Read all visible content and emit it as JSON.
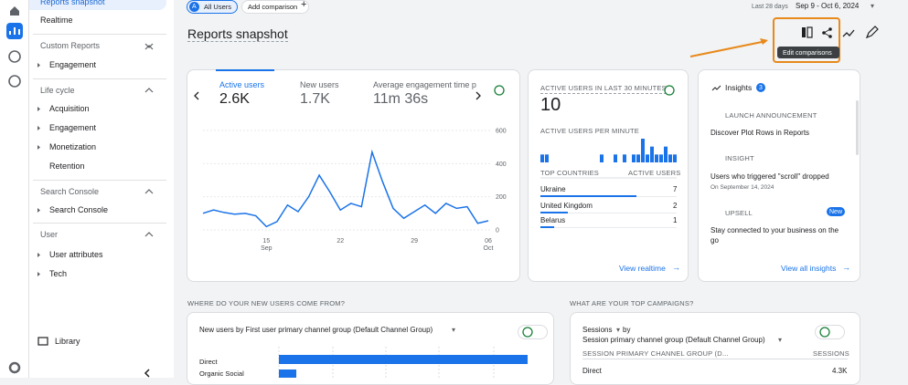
{
  "nav": {
    "top": [
      "Reports snapshot",
      "Realtime"
    ],
    "sections": [
      {
        "title": "Custom Reports",
        "items": [
          "Engagement"
        ]
      },
      {
        "title": "Life cycle",
        "items": [
          "Acquisition",
          "Engagement",
          "Monetization",
          "Retention"
        ]
      },
      {
        "title": "Search Console",
        "items": [
          "Search Console"
        ]
      },
      {
        "title": "User",
        "items": [
          "User attributes",
          "Tech"
        ]
      }
    ],
    "library": "Library"
  },
  "toolbar": {
    "segment_badge": "A",
    "segment": "All Users",
    "add_comparison": "Add comparison",
    "date_label": "Last 28 days",
    "date_range": "Sep 9 - Oct 6, 2024"
  },
  "page_title": "Reports snapshot",
  "tooltip": "Edit comparisons",
  "overview": {
    "tabs": [
      {
        "label": "Active users",
        "value": "2.6K"
      },
      {
        "label": "New users",
        "value": "1.7K"
      },
      {
        "label": "Average engagement time p",
        "value": "11m 36s"
      }
    ],
    "chart": {
      "type": "line",
      "color": "#1a73e8",
      "categories": [
        null,
        null,
        null,
        null,
        null,
        null,
        "15",
        null,
        null,
        null,
        null,
        null,
        null,
        "22",
        null,
        null,
        null,
        null,
        null,
        null,
        "29",
        null,
        null,
        null,
        null,
        null,
        null,
        "06"
      ],
      "months": [
        null,
        null,
        null,
        null,
        null,
        null,
        "Sep",
        null,
        null,
        null,
        null,
        null,
        null,
        null,
        null,
        null,
        null,
        null,
        null,
        null,
        null,
        null,
        null,
        null,
        null,
        null,
        null,
        "Oct"
      ],
      "values": [
        100,
        120,
        105,
        95,
        100,
        85,
        20,
        50,
        150,
        110,
        200,
        330,
        230,
        120,
        160,
        140,
        470,
        290,
        130,
        70,
        110,
        150,
        100,
        160,
        130,
        140,
        40,
        55
      ],
      "ylim": [
        0,
        600
      ],
      "yticks": [
        0,
        200,
        400,
        600
      ],
      "grid": true
    }
  },
  "realtime": {
    "title": "ACTIVE USERS IN LAST 30 MINUTES",
    "value": 10,
    "per_minute_label": "ACTIVE USERS PER MINUTE",
    "per_minute": [
      1,
      1,
      0,
      0,
      0,
      0,
      0,
      0,
      0,
      0,
      0,
      0,
      0,
      1,
      0,
      0,
      1,
      0,
      1,
      0,
      1,
      1,
      3,
      1,
      2,
      1,
      1,
      2,
      1,
      1
    ],
    "countries_header": "TOP COUNTRIES",
    "users_header": "ACTIVE USERS",
    "countries": [
      {
        "name": "Ukraine",
        "value": 7
      },
      {
        "name": "United Kingdom",
        "value": 2
      },
      {
        "name": "Belarus",
        "value": 1
      }
    ],
    "link": "View realtime"
  },
  "insights": {
    "title": "Insights",
    "count": 3,
    "items": [
      {
        "kind": "LAUNCH ANNOUNCEMENT",
        "text": "Discover Plot Rows in Reports"
      },
      {
        "kind": "INSIGHT",
        "text": "Users who triggered \"scroll\" dropped",
        "date": "On September 14, 2024"
      },
      {
        "kind": "UPSELL",
        "badge": "New",
        "text": "Stay connected to your business on the go"
      }
    ],
    "link": "View all insights"
  },
  "new_users": {
    "heading": "WHERE DO YOUR NEW USERS COME FROM?",
    "selector": "New users by First user primary channel group (Default Channel Group)",
    "categories": [
      "Direct",
      "Organic Social"
    ],
    "values": [
      1500,
      105
    ],
    "color": "#1a73e8"
  },
  "campaigns": {
    "heading": "WHAT ARE YOUR TOP CAMPAIGNS?",
    "metric": "Sessions",
    "by": "by",
    "dimension": "Session primary channel group (Default Channel Group)",
    "col1": "SESSION PRIMARY CHANNEL GROUP (D...",
    "col2": "SESSIONS",
    "rows": [
      [
        "Direct",
        "4.3K"
      ]
    ]
  }
}
